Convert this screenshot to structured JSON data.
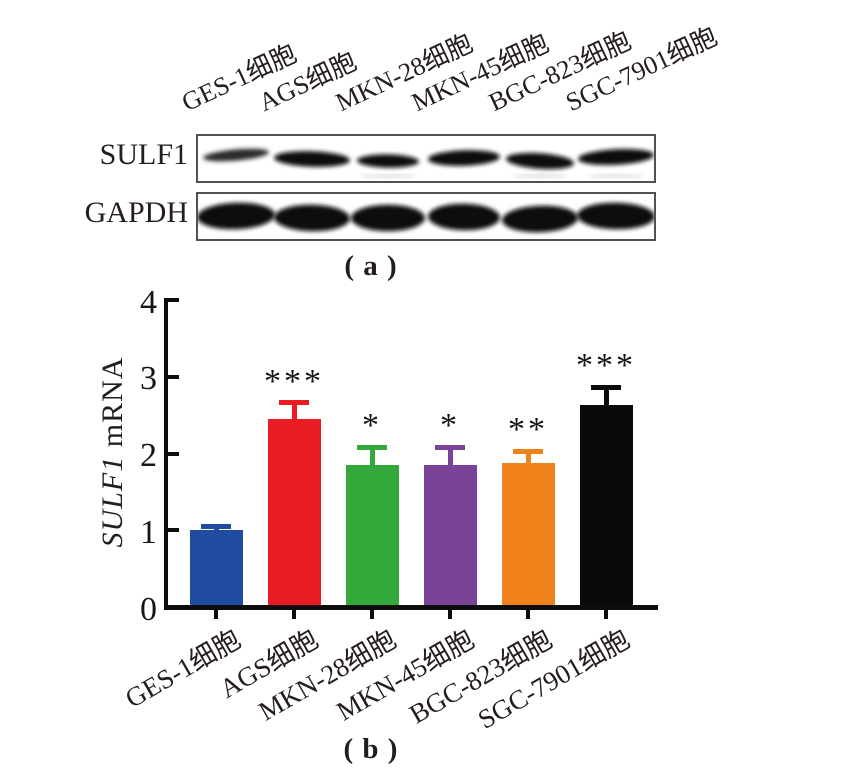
{
  "blot": {
    "panel_label": "( a )",
    "lanes": [
      "GES-1细胞",
      "AGS细胞",
      "MKN-28细胞",
      "MKN-45细胞",
      "BGC-823细胞",
      "SGC-7901细胞"
    ],
    "rows": [
      {
        "label": "SULF1",
        "bands": [
          "weak",
          "strong",
          "medium",
          "strong",
          "strong",
          "strong"
        ]
      },
      {
        "label": "GAPDH",
        "bands": [
          "strong",
          "strong",
          "strong",
          "strong",
          "strong",
          "strong"
        ]
      }
    ]
  },
  "chart_data": {
    "type": "bar",
    "title": "",
    "xlabel": "",
    "ylabel": "SULF1 mRNA",
    "ylabel_gene": "SULF1",
    "ylabel_rest": " mRNA",
    "panel_label": "( b )",
    "categories": [
      "GES-1细胞",
      "AGS细胞",
      "MKN-28细胞",
      "MKN-45细胞",
      "BGC-823细胞",
      "SGC-7901细胞"
    ],
    "values": [
      1.0,
      2.45,
      1.85,
      1.85,
      1.88,
      2.63
    ],
    "errors": [
      0.05,
      0.21,
      0.23,
      0.23,
      0.15,
      0.23
    ],
    "significance": [
      "",
      "***",
      "*",
      "*",
      "**",
      "***"
    ],
    "colors": [
      "#1F4BA0",
      "#EA1B22",
      "#33A93B",
      "#7B4397",
      "#F0821C",
      "#0A0A0A"
    ],
    "ylim": [
      0,
      4
    ],
    "yticks": [
      0,
      1,
      2,
      3,
      4
    ],
    "grid": false,
    "legend": false
  }
}
